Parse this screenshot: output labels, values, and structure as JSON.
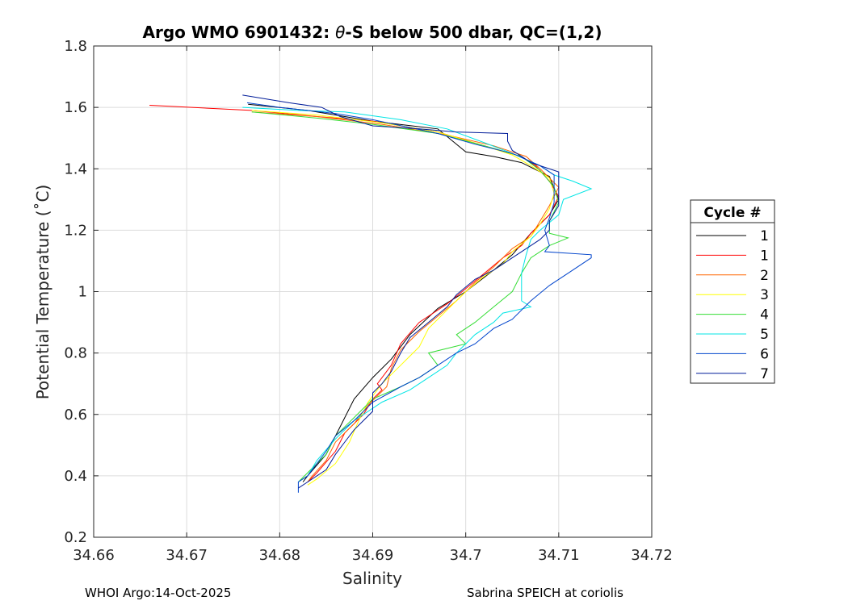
{
  "chart_data": {
    "type": "line",
    "title_prefix": "Argo WMO 6901432: ",
    "title_theta": "θ",
    "title_suffix": "-S below 500 dbar,  QC=(1,2)",
    "xlabel": "Salinity",
    "ylabel": "Potential Temperature (˚C)",
    "xlim": [
      34.66,
      34.72
    ],
    "ylim": [
      0.2,
      1.8
    ],
    "xticks": [
      "34.66",
      "34.67",
      "34.68",
      "34.69",
      "34.7",
      "34.71",
      "34.72"
    ],
    "yticks": [
      "0.2",
      "0.4",
      "0.6",
      "0.8",
      "1",
      "1.2",
      "1.4",
      "1.6",
      "1.8"
    ],
    "grid": true,
    "legend_title": "Cycle #",
    "legend_position": "outside-right",
    "series": [
      {
        "name": "1",
        "color": "#000000",
        "points": [
          [
            34.6766,
            1.61
          ],
          [
            34.683,
            1.59
          ],
          [
            34.69,
            1.555
          ],
          [
            34.697,
            1.53
          ],
          [
            34.7,
            1.455
          ],
          [
            34.703,
            1.44
          ],
          [
            34.706,
            1.42
          ],
          [
            34.709,
            1.375
          ],
          [
            34.71,
            1.3
          ],
          [
            34.709,
            1.25
          ],
          [
            34.707,
            1.19
          ],
          [
            34.705,
            1.12
          ],
          [
            34.703,
            1.07
          ],
          [
            34.7,
            1.0
          ],
          [
            34.697,
            0.945
          ],
          [
            34.694,
            0.86
          ],
          [
            34.692,
            0.78
          ],
          [
            34.69,
            0.72
          ],
          [
            34.688,
            0.65
          ],
          [
            34.6865,
            0.56
          ],
          [
            34.685,
            0.47
          ],
          [
            34.683,
            0.4
          ],
          [
            34.6825,
            0.38
          ]
        ]
      },
      {
        "name": "1",
        "color": "#ff0000",
        "points": [
          [
            34.666,
            1.607
          ],
          [
            34.677,
            1.59
          ],
          [
            34.684,
            1.57
          ],
          [
            34.69,
            1.555
          ],
          [
            34.697,
            1.52
          ],
          [
            34.702,
            1.475
          ],
          [
            34.706,
            1.44
          ],
          [
            34.7075,
            1.41
          ],
          [
            34.709,
            1.36
          ],
          [
            34.71,
            1.31
          ],
          [
            34.709,
            1.25
          ],
          [
            34.707,
            1.19
          ],
          [
            34.706,
            1.15
          ],
          [
            34.704,
            1.11
          ],
          [
            34.702,
            1.06
          ],
          [
            34.7,
            1.01
          ],
          [
            34.698,
            0.96
          ],
          [
            34.695,
            0.9
          ],
          [
            34.693,
            0.83
          ],
          [
            34.692,
            0.76
          ],
          [
            34.6905,
            0.7
          ],
          [
            34.691,
            0.68
          ],
          [
            34.69,
            0.65
          ],
          [
            34.689,
            0.6
          ],
          [
            34.687,
            0.54
          ],
          [
            34.686,
            0.48
          ],
          [
            34.684,
            0.41
          ],
          [
            34.683,
            0.38
          ]
        ]
      },
      {
        "name": "2",
        "color": "#ff6600",
        "points": [
          [
            34.677,
            1.585
          ],
          [
            34.684,
            1.57
          ],
          [
            34.691,
            1.545
          ],
          [
            34.698,
            1.51
          ],
          [
            34.703,
            1.475
          ],
          [
            34.7065,
            1.44
          ],
          [
            34.708,
            1.4
          ],
          [
            34.71,
            1.34
          ],
          [
            34.709,
            1.28
          ],
          [
            34.708,
            1.23
          ],
          [
            34.707,
            1.18
          ],
          [
            34.705,
            1.14
          ],
          [
            34.703,
            1.08
          ],
          [
            34.701,
            1.03
          ],
          [
            34.699,
            0.97
          ],
          [
            34.697,
            0.92
          ],
          [
            34.695,
            0.87
          ],
          [
            34.693,
            0.81
          ],
          [
            34.692,
            0.75
          ],
          [
            34.6915,
            0.69
          ],
          [
            34.6895,
            0.63
          ],
          [
            34.688,
            0.57
          ],
          [
            34.686,
            0.51
          ],
          [
            34.685,
            0.45
          ],
          [
            34.6835,
            0.4
          ],
          [
            34.683,
            0.38
          ]
        ]
      },
      {
        "name": "3",
        "color": "#ffff00",
        "points": [
          [
            34.677,
            1.59
          ],
          [
            34.684,
            1.575
          ],
          [
            34.691,
            1.55
          ],
          [
            34.697,
            1.52
          ],
          [
            34.702,
            1.475
          ],
          [
            34.705,
            1.445
          ],
          [
            34.707,
            1.41
          ],
          [
            34.709,
            1.37
          ],
          [
            34.7095,
            1.32
          ],
          [
            34.709,
            1.27
          ],
          [
            34.708,
            1.22
          ],
          [
            34.707,
            1.18
          ],
          [
            34.705,
            1.13
          ],
          [
            34.704,
            1.09
          ],
          [
            34.702,
            1.05
          ],
          [
            34.7,
            1.0
          ],
          [
            34.698,
            0.94
          ],
          [
            34.696,
            0.88
          ],
          [
            34.695,
            0.82
          ],
          [
            34.693,
            0.76
          ],
          [
            34.691,
            0.7
          ],
          [
            34.6895,
            0.64
          ],
          [
            34.6885,
            0.58
          ],
          [
            34.6875,
            0.51
          ],
          [
            34.686,
            0.44
          ],
          [
            34.684,
            0.39
          ],
          [
            34.683,
            0.37
          ]
        ]
      },
      {
        "name": "4",
        "color": "#33dd33",
        "points": [
          [
            34.677,
            1.585
          ],
          [
            34.684,
            1.565
          ],
          [
            34.69,
            1.545
          ],
          [
            34.697,
            1.515
          ],
          [
            34.702,
            1.475
          ],
          [
            34.706,
            1.44
          ],
          [
            34.708,
            1.395
          ],
          [
            34.7095,
            1.34
          ],
          [
            34.71,
            1.29
          ],
          [
            34.709,
            1.23
          ],
          [
            34.709,
            1.19
          ],
          [
            34.711,
            1.175
          ],
          [
            34.709,
            1.15
          ],
          [
            34.707,
            1.11
          ],
          [
            34.706,
            1.06
          ],
          [
            34.705,
            1.0
          ],
          [
            34.703,
            0.95
          ],
          [
            34.701,
            0.9
          ],
          [
            34.699,
            0.86
          ],
          [
            34.7,
            0.83
          ],
          [
            34.696,
            0.8
          ],
          [
            34.697,
            0.76
          ],
          [
            34.695,
            0.72
          ],
          [
            34.693,
            0.69
          ],
          [
            34.69,
            0.65
          ],
          [
            34.688,
            0.59
          ],
          [
            34.686,
            0.53
          ],
          [
            34.685,
            0.47
          ],
          [
            34.683,
            0.41
          ],
          [
            34.682,
            0.38
          ]
        ]
      },
      {
        "name": "5",
        "color": "#00e5e5",
        "points": [
          [
            34.676,
            1.6
          ],
          [
            34.682,
            1.59
          ],
          [
            34.687,
            1.585
          ],
          [
            34.693,
            1.56
          ],
          [
            34.698,
            1.53
          ],
          [
            34.702,
            1.485
          ],
          [
            34.705,
            1.45
          ],
          [
            34.708,
            1.41
          ],
          [
            34.7095,
            1.38
          ],
          [
            34.7115,
            1.36
          ],
          [
            34.7135,
            1.335
          ],
          [
            34.7105,
            1.3
          ],
          [
            34.71,
            1.25
          ],
          [
            34.708,
            1.2
          ],
          [
            34.707,
            1.17
          ],
          [
            34.7065,
            1.12
          ],
          [
            34.706,
            1.06
          ],
          [
            34.706,
            0.97
          ],
          [
            34.707,
            0.95
          ],
          [
            34.704,
            0.93
          ],
          [
            34.703,
            0.9
          ],
          [
            34.701,
            0.86
          ],
          [
            34.699,
            0.8
          ],
          [
            34.698,
            0.76
          ],
          [
            34.696,
            0.72
          ],
          [
            34.694,
            0.68
          ],
          [
            34.691,
            0.64
          ],
          [
            34.688,
            0.58
          ],
          [
            34.686,
            0.52
          ],
          [
            34.684,
            0.45
          ],
          [
            34.683,
            0.4
          ],
          [
            34.682,
            0.38
          ]
        ]
      },
      {
        "name": "6",
        "color": "#0044cc",
        "points": [
          [
            34.6765,
            1.615
          ],
          [
            34.68,
            1.6
          ],
          [
            34.686,
            1.58
          ],
          [
            34.69,
            1.56
          ],
          [
            34.697,
            1.515
          ],
          [
            34.701,
            1.48
          ],
          [
            34.705,
            1.45
          ],
          [
            34.708,
            1.41
          ],
          [
            34.7095,
            1.38
          ],
          [
            34.7095,
            1.34
          ],
          [
            34.7095,
            1.29
          ],
          [
            34.709,
            1.24
          ],
          [
            34.7085,
            1.2
          ],
          [
            34.709,
            1.15
          ],
          [
            34.7085,
            1.13
          ],
          [
            34.7135,
            1.12
          ],
          [
            34.7135,
            1.11
          ],
          [
            34.711,
            1.06
          ],
          [
            34.709,
            1.02
          ],
          [
            34.707,
            0.97
          ],
          [
            34.705,
            0.91
          ],
          [
            34.703,
            0.88
          ],
          [
            34.701,
            0.83
          ],
          [
            34.699,
            0.8
          ],
          [
            34.697,
            0.76
          ],
          [
            34.695,
            0.72
          ],
          [
            34.693,
            0.69
          ],
          [
            34.69,
            0.64
          ],
          [
            34.688,
            0.58
          ],
          [
            34.686,
            0.53
          ],
          [
            34.685,
            0.48
          ],
          [
            34.684,
            0.44
          ],
          [
            34.683,
            0.4
          ],
          [
            34.682,
            0.38
          ],
          [
            34.682,
            0.345
          ]
        ]
      },
      {
        "name": "7",
        "color": "#001c99",
        "points": [
          [
            34.676,
            1.64
          ],
          [
            34.681,
            1.615
          ],
          [
            34.6845,
            1.6
          ],
          [
            34.6865,
            1.57
          ],
          [
            34.69,
            1.54
          ],
          [
            34.695,
            1.53
          ],
          [
            34.699,
            1.52
          ],
          [
            34.7045,
            1.515
          ],
          [
            34.7045,
            1.49
          ],
          [
            34.705,
            1.46
          ],
          [
            34.707,
            1.42
          ],
          [
            34.71,
            1.39
          ],
          [
            34.71,
            1.34
          ],
          [
            34.71,
            1.28
          ],
          [
            34.709,
            1.23
          ],
          [
            34.709,
            1.2
          ],
          [
            34.708,
            1.17
          ],
          [
            34.707,
            1.15
          ],
          [
            34.705,
            1.11
          ],
          [
            34.703,
            1.07
          ],
          [
            34.701,
            1.04
          ],
          [
            34.699,
            0.99
          ],
          [
            34.698,
            0.95
          ],
          [
            34.696,
            0.9
          ],
          [
            34.694,
            0.85
          ],
          [
            34.693,
            0.8
          ],
          [
            34.692,
            0.74
          ],
          [
            34.691,
            0.7
          ],
          [
            34.69,
            0.67
          ],
          [
            34.69,
            0.61
          ],
          [
            34.689,
            0.58
          ],
          [
            34.688,
            0.55
          ],
          [
            34.687,
            0.51
          ],
          [
            34.686,
            0.47
          ],
          [
            34.685,
            0.42
          ],
          [
            34.683,
            0.38
          ],
          [
            34.682,
            0.36
          ]
        ]
      }
    ]
  },
  "footer": {
    "left": "WHOI Argo:14-Oct-2025",
    "right": "Sabrina SPEICH at coriolis"
  }
}
